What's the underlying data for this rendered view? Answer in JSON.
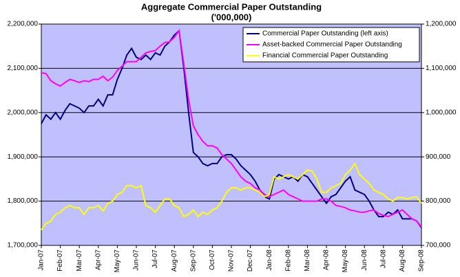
{
  "chart_data": {
    "type": "line",
    "title": "Aggregate Commercial Paper Outstanding",
    "subtitle": "('000,000)",
    "categories": [
      "Jan-07",
      null,
      null,
      null,
      "Feb-07",
      null,
      null,
      null,
      "Mar-07",
      null,
      null,
      null,
      "Apr-07",
      null,
      null,
      null,
      "May-07",
      null,
      null,
      null,
      "Jun-07",
      null,
      null,
      null,
      "Jul-07",
      null,
      null,
      null,
      "Aug-07",
      null,
      null,
      null,
      "Sep-07",
      null,
      null,
      null,
      "Oct-07",
      null,
      null,
      null,
      "Nov-07",
      null,
      null,
      null,
      "Dec-07",
      null,
      null,
      null,
      "Jan-08",
      null,
      null,
      null,
      "Feb-08",
      null,
      null,
      null,
      "Mar-08",
      null,
      null,
      null,
      "Apr-08",
      null,
      null,
      null,
      "May-08",
      null,
      null,
      null,
      "Jun-08",
      null,
      null,
      null,
      "Jul-08",
      null,
      null,
      null,
      "Aug-08",
      null,
      null,
      null,
      "Sep-08"
    ],
    "series": [
      {
        "name": "Commercial Paper Outstanding (left axis)",
        "color": "#000080",
        "axis": "y",
        "values": [
          1975000,
          1995000,
          1985000,
          2000000,
          1985000,
          2005000,
          2020000,
          2015000,
          2010000,
          2000000,
          2015000,
          2015000,
          2030000,
          2015000,
          2040000,
          2040000,
          2075000,
          2100000,
          2130000,
          2145000,
          2125000,
          2120000,
          2130000,
          2120000,
          2135000,
          2130000,
          2150000,
          2160000,
          2175000,
          2185000,
          2100000,
          2000000,
          1910000,
          1900000,
          1885000,
          1880000,
          1885000,
          1885000,
          1900000,
          1905000,
          1905000,
          1895000,
          1880000,
          1870000,
          1860000,
          1845000,
          1825000,
          1810000,
          1805000,
          1850000,
          1860000,
          1855000,
          1850000,
          1855000,
          1845000,
          1860000,
          1855000,
          1840000,
          1825000,
          1810000,
          1795000,
          1810000,
          1815000,
          1830000,
          1845000,
          1855000,
          1825000,
          1820000,
          1815000,
          1800000,
          1780000,
          1765000,
          1765000,
          1775000,
          1770000,
          1780000,
          1760000,
          1760000,
          1760000,
          1755000,
          1740000
        ]
      },
      {
        "name": "Asset-backed Commercial Paper Outstanding",
        "color": "#ff00ff",
        "axis": "y2",
        "values": [
          1090000,
          1088000,
          1072000,
          1065000,
          1060000,
          1068000,
          1075000,
          1072000,
          1068000,
          1072000,
          1070000,
          1075000,
          1075000,
          1082000,
          1072000,
          1080000,
          1095000,
          1105000,
          1115000,
          1115000,
          1115000,
          1125000,
          1135000,
          1138000,
          1140000,
          1150000,
          1158000,
          1160000,
          1170000,
          1185000,
          1110000,
          1030000,
          970000,
          950000,
          935000,
          925000,
          925000,
          920000,
          905000,
          895000,
          885000,
          870000,
          855000,
          845000,
          840000,
          830000,
          825000,
          815000,
          810000,
          815000,
          820000,
          825000,
          815000,
          810000,
          805000,
          800000,
          800000,
          800000,
          800000,
          805000,
          805000,
          800000,
          790000,
          788000,
          785000,
          780000,
          778000,
          775000,
          775000,
          778000,
          780000,
          772000,
          768000,
          765000,
          770000,
          775000,
          780000,
          770000,
          760000,
          755000,
          742000
        ]
      },
      {
        "name": "Financial Commercial Paper Outstanding",
        "color": "#ffff00",
        "axis": "y2",
        "values": [
          735000,
          750000,
          755000,
          770000,
          775000,
          785000,
          790000,
          785000,
          785000,
          770000,
          785000,
          785000,
          790000,
          778000,
          795000,
          800000,
          815000,
          820000,
          835000,
          835000,
          830000,
          835000,
          790000,
          785000,
          775000,
          790000,
          805000,
          805000,
          790000,
          785000,
          765000,
          770000,
          780000,
          765000,
          775000,
          770000,
          780000,
          785000,
          800000,
          820000,
          830000,
          830000,
          825000,
          830000,
          830000,
          825000,
          820000,
          810000,
          815000,
          855000,
          850000,
          855000,
          860000,
          855000,
          850000,
          860000,
          870000,
          868000,
          850000,
          820000,
          820000,
          830000,
          835000,
          840000,
          860000,
          870000,
          885000,
          860000,
          850000,
          840000,
          825000,
          820000,
          815000,
          805000,
          800000,
          808000,
          808000,
          805000,
          808000,
          810000,
          795000
        ]
      }
    ],
    "ylim": [
      1700000,
      2200000
    ],
    "yticks": [
      {
        "value": 1700000,
        "label": "1,700,000"
      },
      {
        "value": 1800000,
        "label": "1,800,000"
      },
      {
        "value": 1900000,
        "label": "1,900,000"
      },
      {
        "value": 2000000,
        "label": "2,000,000"
      },
      {
        "value": 2100000,
        "label": "2,100,000"
      },
      {
        "value": 2200000,
        "label": "2,200,000"
      }
    ],
    "y2lim": [
      700000,
      1200000
    ],
    "y2ticks": [
      {
        "value": 700000,
        "label": "700,000"
      },
      {
        "value": 800000,
        "label": "800,000"
      },
      {
        "value": 900000,
        "label": "900,000"
      },
      {
        "value": 1000000,
        "label": "1,000,000"
      },
      {
        "value": 1100000,
        "label": "1,100,000"
      },
      {
        "value": 1200000,
        "label": "1,200,000"
      }
    ],
    "grid": true,
    "legend": "top-right",
    "plot_background": "#c0c0ff"
  }
}
